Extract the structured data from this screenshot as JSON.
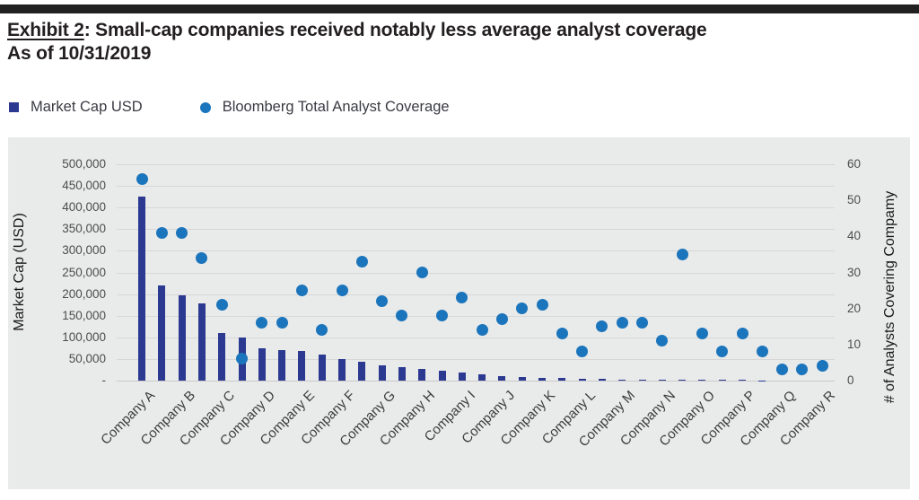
{
  "header": {
    "exhibit_label": "Exhibit 2",
    "title_rest": ": Small-cap companies received notably less average analyst coverage",
    "subtitle": "As of 10/31/2019"
  },
  "legend": {
    "market_cap": "Market Cap USD",
    "analyst_coverage": "Bloomberg Total Analyst Coverage"
  },
  "colors": {
    "bar_navy": "#2B3990",
    "dot_blue": "#1B75BC",
    "panel_gray": "#E9EAEA",
    "gridline_gray": "#D7D7D7",
    "rule_black": "#212121"
  },
  "chart_data": {
    "type": "combo-bar-scatter",
    "title": "Exhibit 2: Small-cap companies received notably less average analyst coverage",
    "subtitle": "As of 10/31/2019",
    "n_points": 35,
    "x_labels": [
      "Company A",
      "Company B",
      "Company C",
      "Company D",
      "Company E",
      "Company F",
      "Company G",
      "Company H",
      "Company I",
      "Company J",
      "Company K",
      "Company L",
      "Company M",
      "Company N",
      "Company O",
      "Company P",
      "Company Q",
      "Company R"
    ],
    "label_every": 2,
    "series": [
      {
        "name": "Market Cap USD",
        "type": "bar",
        "axis": "left",
        "color": "#2B3990",
        "values": [
          425000,
          220000,
          197000,
          178000,
          110000,
          100000,
          74000,
          71000,
          69000,
          60000,
          50000,
          43000,
          35000,
          32000,
          27000,
          23000,
          18000,
          14000,
          10000,
          8000,
          7000,
          6000,
          4000,
          3500,
          3000,
          2500,
          2500,
          2000,
          2000,
          1500,
          1000,
          800,
          600,
          500,
          400
        ]
      },
      {
        "name": "Bloomberg Total Analyst Coverage",
        "type": "scatter",
        "axis": "right",
        "color": "#1B75BC",
        "values": [
          56,
          41,
          41,
          34,
          21,
          6,
          16,
          16,
          25,
          14,
          25,
          33,
          22,
          18,
          30,
          18,
          23,
          14,
          17,
          20,
          21,
          13,
          8,
          15,
          16,
          16,
          11,
          35,
          13,
          8,
          13,
          8,
          3,
          3,
          4
        ]
      }
    ],
    "left_axis": {
      "title": "Market Cap (USD)",
      "min": 0,
      "max": 500000,
      "step": 50000,
      "ticks": [
        "500,000",
        "450,000",
        "400,000",
        "350,000",
        "300,000",
        "250,000",
        "200,000",
        "150,000",
        "100,000",
        "50,000",
        "-"
      ]
    },
    "right_axis": {
      "title": "# of Analysts Covering Compamy",
      "min": 0,
      "max": 60,
      "step": 10,
      "ticks": [
        "60",
        "50",
        "40",
        "30",
        "20",
        "10",
        "0"
      ]
    },
    "grid": "horizontal",
    "legend_position": "top-left"
  }
}
